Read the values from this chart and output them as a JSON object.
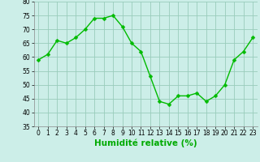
{
  "x": [
    0,
    1,
    2,
    3,
    4,
    5,
    6,
    7,
    8,
    9,
    10,
    11,
    12,
    13,
    14,
    15,
    16,
    17,
    18,
    19,
    20,
    21,
    22,
    23
  ],
  "y": [
    59,
    61,
    66,
    65,
    67,
    70,
    74,
    74,
    75,
    71,
    65,
    62,
    53,
    44,
    43,
    46,
    46,
    47,
    44,
    46,
    50,
    59,
    62,
    67
  ],
  "line_color": "#00bb00",
  "marker_color": "#00bb00",
  "bg_color": "#cceee8",
  "grid_color": "#99ccbb",
  "xlabel": "Humidité relative (%)",
  "xlabel_color": "#00aa00",
  "ylim": [
    35,
    80
  ],
  "yticks": [
    35,
    40,
    45,
    50,
    55,
    60,
    65,
    70,
    75,
    80
  ],
  "xticks": [
    0,
    1,
    2,
    3,
    4,
    5,
    6,
    7,
    8,
    9,
    10,
    11,
    12,
    13,
    14,
    15,
    16,
    17,
    18,
    19,
    20,
    21,
    22,
    23
  ],
  "tick_color": "#000000",
  "tick_fontsize": 5.5,
  "xlabel_fontsize": 7.5,
  "line_width": 1.0,
  "marker_size": 2.5
}
